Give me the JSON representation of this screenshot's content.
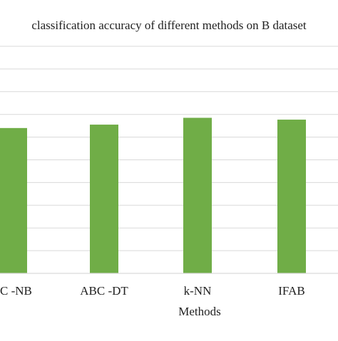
{
  "chart_data": {
    "type": "bar",
    "title": "classification accuracy of different methods on B dataset",
    "xlabel": "Methods",
    "ylabel": "",
    "categories": [
      "ABC -NB",
      "ABC -DT",
      "k-NN",
      "IFAB"
    ],
    "displayed_categories": [
      "C -NB",
      "ABC -DT",
      "k-NN",
      "IFAB"
    ],
    "values": [
      0.64,
      0.655,
      0.685,
      0.677
    ],
    "ylim": [
      0,
      1
    ],
    "grid": true,
    "legend": "none",
    "colors": {
      "bar": "#70ad47",
      "grid": "#d9d9d9",
      "text": "#222222"
    }
  }
}
